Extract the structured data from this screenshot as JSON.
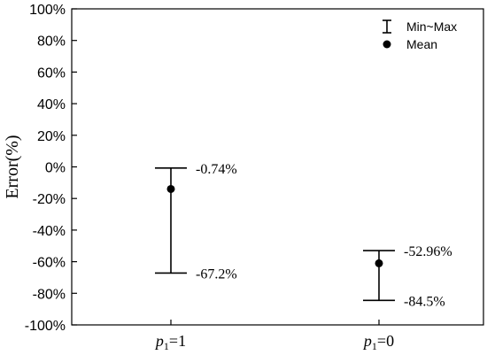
{
  "chart_data": {
    "type": "errorbar",
    "ylabel": "Error(%)",
    "ylim": [
      -100,
      100
    ],
    "yticks": [
      -100,
      -80,
      -60,
      -40,
      -20,
      0,
      20,
      40,
      60,
      80,
      100
    ],
    "ytick_labels": [
      "-100%",
      "-80%",
      "-60%",
      "-40%",
      "-20%",
      "0%",
      "20%",
      "40%",
      "60%",
      "80%",
      "100%"
    ],
    "categories": [
      {
        "var": "p",
        "sub": "1",
        "rest": "=1"
      },
      {
        "var": "p",
        "sub": "1",
        "rest": "=0"
      }
    ],
    "series": [
      {
        "min": [
          -67.2,
          -84.5
        ],
        "max": [
          -0.74,
          -52.96
        ],
        "mean": [
          -14,
          -61
        ],
        "min_labels": [
          "-67.2%",
          "-84.5%"
        ],
        "max_labels": [
          "-0.74%",
          "-52.96%"
        ]
      }
    ],
    "legend": {
      "position": "top-right",
      "entries": [
        {
          "marker": "errorbar",
          "label": "Min~Max"
        },
        {
          "marker": "dot",
          "label": "Mean"
        }
      ]
    },
    "grid": false
  }
}
